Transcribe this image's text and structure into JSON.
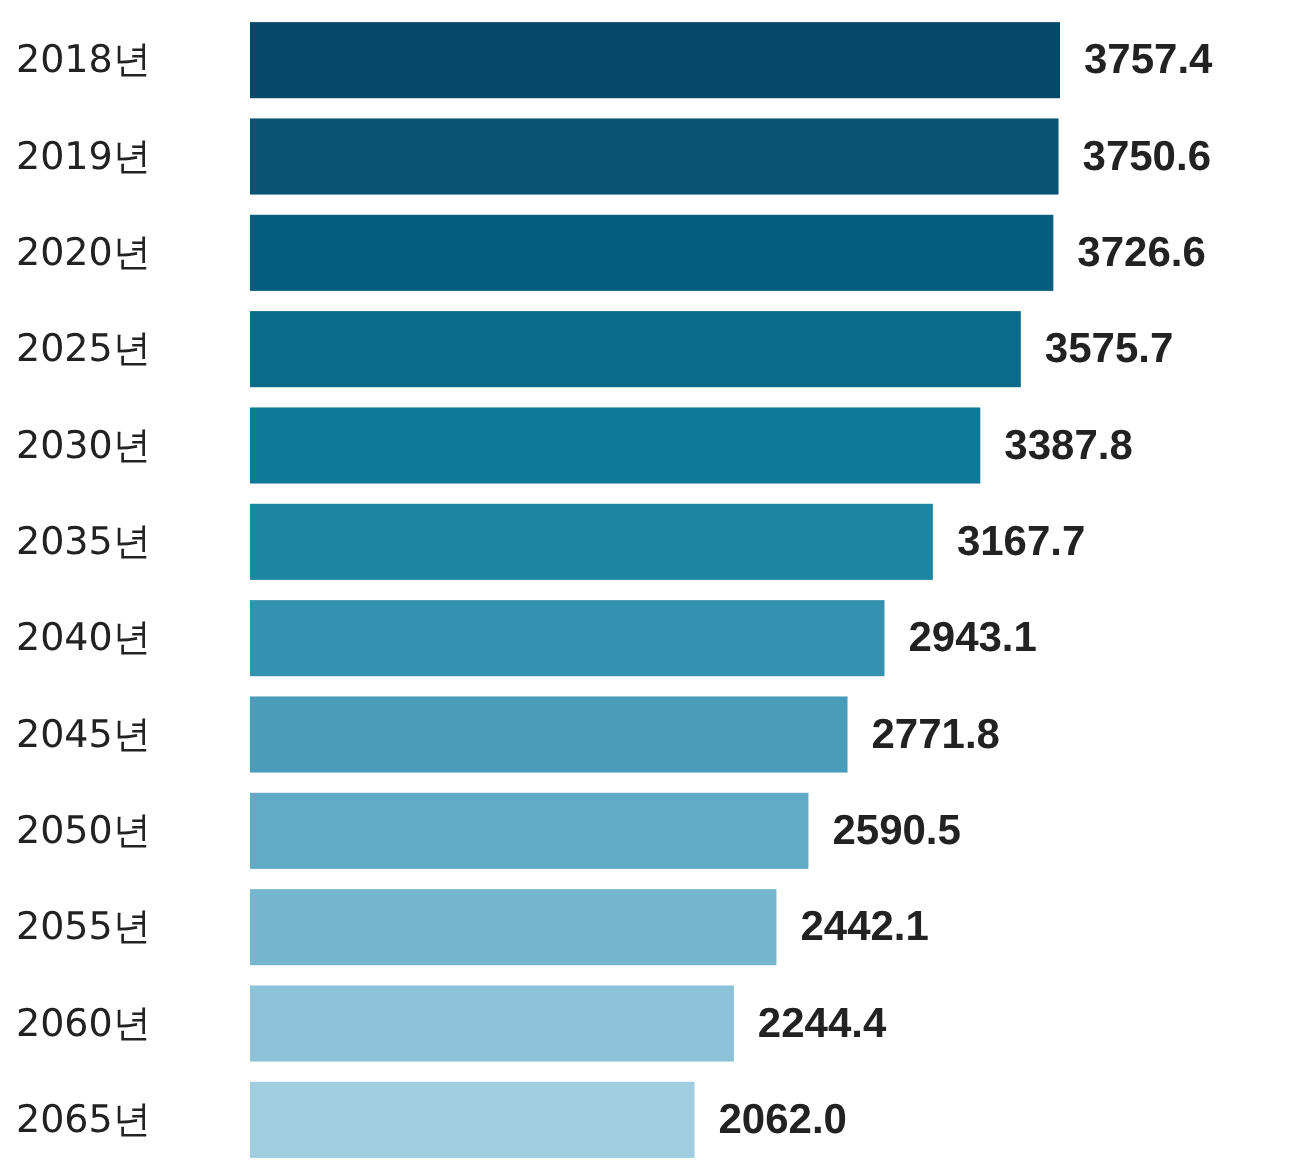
{
  "chart_data": {
    "type": "bar",
    "orientation": "horizontal",
    "categories": [
      "2018년",
      "2019년",
      "2020년",
      "2025년",
      "2030년",
      "2035년",
      "2040년",
      "2045년",
      "2050년",
      "2055년",
      "2060년",
      "2065년"
    ],
    "values": [
      3757.4,
      3750.6,
      3726.6,
      3575.7,
      3387.8,
      3167.7,
      2943.1,
      2771.8,
      2590.5,
      2442.1,
      2244.4,
      2062.0
    ],
    "value_labels": [
      "3757.4",
      "3750.6",
      "3726.6",
      "3575.7",
      "3387.8",
      "3167.7",
      "2943.1",
      "2771.8",
      "2590.5",
      "2442.1",
      "2244.4",
      "2062.0"
    ],
    "colors": [
      "#07486a",
      "#085473",
      "#075d7e",
      "#0b6b8b",
      "#0e7a97",
      "#1d87a3",
      "#3392b0",
      "#4a9dba",
      "#62abc7",
      "#75b6ce",
      "#8bc2d8",
      "#a0cde0"
    ]
  }
}
